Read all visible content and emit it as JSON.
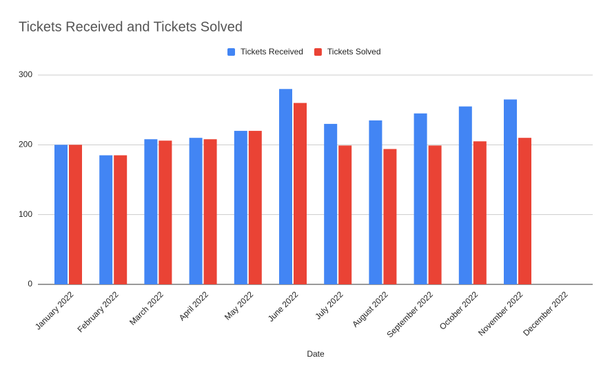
{
  "chart_data": {
    "type": "bar",
    "title": "Tickets Received and Tickets Solved",
    "x_label": "Date",
    "categories": [
      "January 2022",
      "February 2022",
      "March 2022",
      "April 2022",
      "May 2022",
      "June 2022",
      "July 2022",
      "August 2022",
      "September 2022",
      "October 2022",
      "November 2022",
      "December 2022"
    ],
    "series": [
      {
        "name": "Tickets Received",
        "color": "#4285f4",
        "values": [
          200,
          185,
          208,
          210,
          220,
          280,
          230,
          235,
          245,
          255,
          265,
          null
        ]
      },
      {
        "name": "Tickets Solved",
        "color": "#ea4335",
        "values": [
          200,
          185,
          206,
          208,
          220,
          260,
          199,
          194,
          199,
          205,
          210,
          null
        ]
      }
    ],
    "ylim": [
      0,
      300
    ],
    "yticks": [
      0,
      100,
      200,
      300
    ],
    "grid": true,
    "legend": "top"
  }
}
